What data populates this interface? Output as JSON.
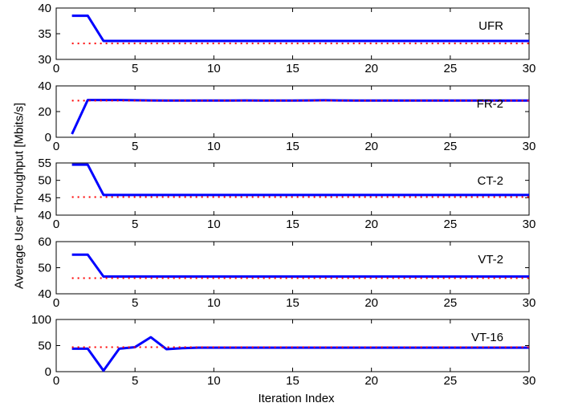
{
  "figure": {
    "ylabel": "Average User Throughput [Mbits/s]",
    "xlabel": "Iteration Index"
  },
  "chart_data": [
    {
      "type": "line",
      "annotation": "UFR",
      "xlim": [
        0,
        30
      ],
      "ylim": [
        30,
        40
      ],
      "xticks": [
        0,
        5,
        10,
        15,
        20,
        25,
        30
      ],
      "yticks": [
        30,
        35,
        40
      ],
      "grid": false,
      "series": [
        {
          "style": "solid",
          "color": "#0000ff",
          "x": [
            1,
            2,
            3,
            4,
            5,
            6,
            7,
            8,
            9,
            10,
            11,
            12,
            13,
            14,
            15,
            16,
            17,
            18,
            19,
            20,
            21,
            22,
            23,
            24,
            25,
            26,
            27,
            28,
            29,
            30
          ],
          "y": [
            38.5,
            38.5,
            33.6,
            33.6,
            33.6,
            33.6,
            33.6,
            33.6,
            33.6,
            33.6,
            33.6,
            33.6,
            33.6,
            33.6,
            33.6,
            33.6,
            33.6,
            33.6,
            33.6,
            33.6,
            33.6,
            33.6,
            33.6,
            33.6,
            33.6,
            33.6,
            33.6,
            33.6,
            33.6,
            33.6
          ]
        },
        {
          "style": "dotted",
          "color": "#ff0000",
          "x": [
            1,
            2,
            3,
            4,
            5,
            6,
            7,
            8,
            9,
            10,
            11,
            12,
            13,
            14,
            15,
            16,
            17,
            18,
            19,
            20,
            21,
            22,
            23,
            24,
            25,
            26,
            27,
            28,
            29,
            30
          ],
          "y": [
            33.1,
            33.1,
            33.1,
            33.1,
            33.1,
            33.1,
            33.1,
            33.1,
            33.1,
            33.1,
            33.1,
            33.1,
            33.1,
            33.1,
            33.1,
            33.1,
            33.1,
            33.1,
            33.1,
            33.1,
            33.1,
            33.1,
            33.1,
            33.1,
            33.1,
            33.1,
            33.1,
            33.1,
            33.1,
            33.1
          ]
        }
      ]
    },
    {
      "type": "line",
      "annotation": "FR-2",
      "xlim": [
        0,
        30
      ],
      "ylim": [
        0,
        40
      ],
      "xticks": [
        0,
        5,
        10,
        15,
        20,
        25,
        30
      ],
      "yticks": [
        0,
        20,
        40
      ],
      "grid": false,
      "series": [
        {
          "style": "solid",
          "color": "#0000ff",
          "x": [
            1,
            2,
            3,
            4,
            5,
            6,
            7,
            8,
            9,
            10,
            11,
            12,
            13,
            14,
            15,
            16,
            17,
            18,
            19,
            20,
            21,
            22,
            23,
            24,
            25,
            26,
            27,
            28,
            29,
            30
          ],
          "y": [
            2.5,
            29,
            29,
            29,
            28.8,
            28.7,
            28.6,
            28.6,
            28.6,
            28.6,
            28.6,
            28.7,
            28.6,
            28.6,
            28.6,
            28.7,
            28.8,
            28.7,
            28.6,
            28.6,
            28.6,
            28.6,
            28.6,
            28.6,
            28.6,
            28.6,
            28.6,
            28.6,
            28.6,
            28.6
          ]
        },
        {
          "style": "dotted",
          "color": "#ff0000",
          "x": [
            1,
            2,
            3,
            4,
            5,
            6,
            7,
            8,
            9,
            10,
            11,
            12,
            13,
            14,
            15,
            16,
            17,
            18,
            19,
            20,
            21,
            22,
            23,
            24,
            25,
            26,
            27,
            28,
            29,
            30
          ],
          "y": [
            28.5,
            28.5,
            28.5,
            28.5,
            28.5,
            28.5,
            28.5,
            28.5,
            28.5,
            28.5,
            28.5,
            28.5,
            28.5,
            28.5,
            28.5,
            28.5,
            28.5,
            28.5,
            28.5,
            28.5,
            28.5,
            28.5,
            28.5,
            28.5,
            28.5,
            28.5,
            28.5,
            28.5,
            28.5,
            28.5
          ]
        }
      ]
    },
    {
      "type": "line",
      "annotation": "CT-2",
      "xlim": [
        0,
        30
      ],
      "ylim": [
        40,
        55
      ],
      "xticks": [
        0,
        5,
        10,
        15,
        20,
        25,
        30
      ],
      "yticks": [
        40,
        45,
        50,
        55
      ],
      "grid": false,
      "series": [
        {
          "style": "solid",
          "color": "#0000ff",
          "x": [
            1,
            2,
            3,
            4,
            5,
            6,
            7,
            8,
            9,
            10,
            11,
            12,
            13,
            14,
            15,
            16,
            17,
            18,
            19,
            20,
            21,
            22,
            23,
            24,
            25,
            26,
            27,
            28,
            29,
            30
          ],
          "y": [
            54.5,
            54.5,
            45.8,
            45.8,
            45.8,
            45.8,
            45.8,
            45.8,
            45.8,
            45.8,
            45.8,
            45.8,
            45.8,
            45.8,
            45.8,
            45.8,
            45.8,
            45.8,
            45.8,
            45.8,
            45.8,
            45.8,
            45.8,
            45.8,
            45.8,
            45.8,
            45.8,
            45.8,
            45.8,
            45.8
          ]
        },
        {
          "style": "dotted",
          "color": "#ff0000",
          "x": [
            1,
            2,
            3,
            4,
            5,
            6,
            7,
            8,
            9,
            10,
            11,
            12,
            13,
            14,
            15,
            16,
            17,
            18,
            19,
            20,
            21,
            22,
            23,
            24,
            25,
            26,
            27,
            28,
            29,
            30
          ],
          "y": [
            45.2,
            45.2,
            45.2,
            45.2,
            45.2,
            45.2,
            45.2,
            45.2,
            45.2,
            45.2,
            45.2,
            45.2,
            45.2,
            45.2,
            45.2,
            45.2,
            45.2,
            45.2,
            45.2,
            45.2,
            45.2,
            45.2,
            45.2,
            45.2,
            45.2,
            45.2,
            45.2,
            45.2,
            45.2,
            45.2
          ]
        }
      ]
    },
    {
      "type": "line",
      "annotation": "VT-2",
      "xlim": [
        0,
        30
      ],
      "ylim": [
        40,
        60
      ],
      "xticks": [
        0,
        5,
        10,
        15,
        20,
        25,
        30
      ],
      "yticks": [
        40,
        50,
        60
      ],
      "grid": false,
      "series": [
        {
          "style": "solid",
          "color": "#0000ff",
          "x": [
            1,
            2,
            3,
            4,
            5,
            6,
            7,
            8,
            9,
            10,
            11,
            12,
            13,
            14,
            15,
            16,
            17,
            18,
            19,
            20,
            21,
            22,
            23,
            24,
            25,
            26,
            27,
            28,
            29,
            30
          ],
          "y": [
            55,
            55,
            46.6,
            46.6,
            46.6,
            46.6,
            46.6,
            46.6,
            46.6,
            46.6,
            46.6,
            46.6,
            46.6,
            46.6,
            46.6,
            46.6,
            46.6,
            46.6,
            46.6,
            46.6,
            46.6,
            46.6,
            46.6,
            46.6,
            46.6,
            46.6,
            46.6,
            46.6,
            46.6,
            46.6
          ]
        },
        {
          "style": "dotted",
          "color": "#ff0000",
          "x": [
            1,
            2,
            3,
            4,
            5,
            6,
            7,
            8,
            9,
            10,
            11,
            12,
            13,
            14,
            15,
            16,
            17,
            18,
            19,
            20,
            21,
            22,
            23,
            24,
            25,
            26,
            27,
            28,
            29,
            30
          ],
          "y": [
            46,
            46,
            46,
            46,
            46,
            46,
            46,
            46,
            46,
            46,
            46,
            46,
            46,
            46,
            46,
            46,
            46,
            46,
            46,
            46,
            46,
            46,
            46,
            46,
            46,
            46,
            46,
            46,
            46,
            46
          ]
        }
      ]
    },
    {
      "type": "line",
      "annotation": "VT-16",
      "xlim": [
        0,
        30
      ],
      "ylim": [
        0,
        100
      ],
      "xticks": [
        0,
        5,
        10,
        15,
        20,
        25,
        30
      ],
      "yticks": [
        0,
        50,
        100
      ],
      "grid": false,
      "series": [
        {
          "style": "solid",
          "color": "#0000ff",
          "x": [
            1,
            2,
            3,
            4,
            5,
            6,
            7,
            8,
            9,
            10,
            11,
            12,
            13,
            14,
            15,
            16,
            17,
            18,
            19,
            20,
            21,
            22,
            23,
            24,
            25,
            26,
            27,
            28,
            29,
            30
          ],
          "y": [
            44,
            44,
            2,
            44,
            47,
            66,
            43,
            45,
            46,
            46,
            46,
            46,
            46,
            46,
            46,
            46,
            46,
            46,
            46,
            46,
            46,
            46,
            46,
            46,
            46,
            46,
            46,
            46,
            46,
            46
          ]
        },
        {
          "style": "dotted",
          "color": "#ff0000",
          "x": [
            1,
            2,
            3,
            4,
            5,
            6,
            7,
            8,
            9,
            10,
            11,
            12,
            13,
            14,
            15,
            16,
            17,
            18,
            19,
            20,
            21,
            22,
            23,
            24,
            25,
            26,
            27,
            28,
            29,
            30
          ],
          "y": [
            47,
            47,
            47,
            47,
            47,
            47,
            47,
            47,
            47,
            47,
            47,
            47,
            47,
            47,
            47,
            47,
            47,
            47,
            47,
            47,
            47,
            47,
            47,
            47,
            47,
            47,
            47,
            47,
            47,
            47
          ]
        }
      ]
    }
  ]
}
